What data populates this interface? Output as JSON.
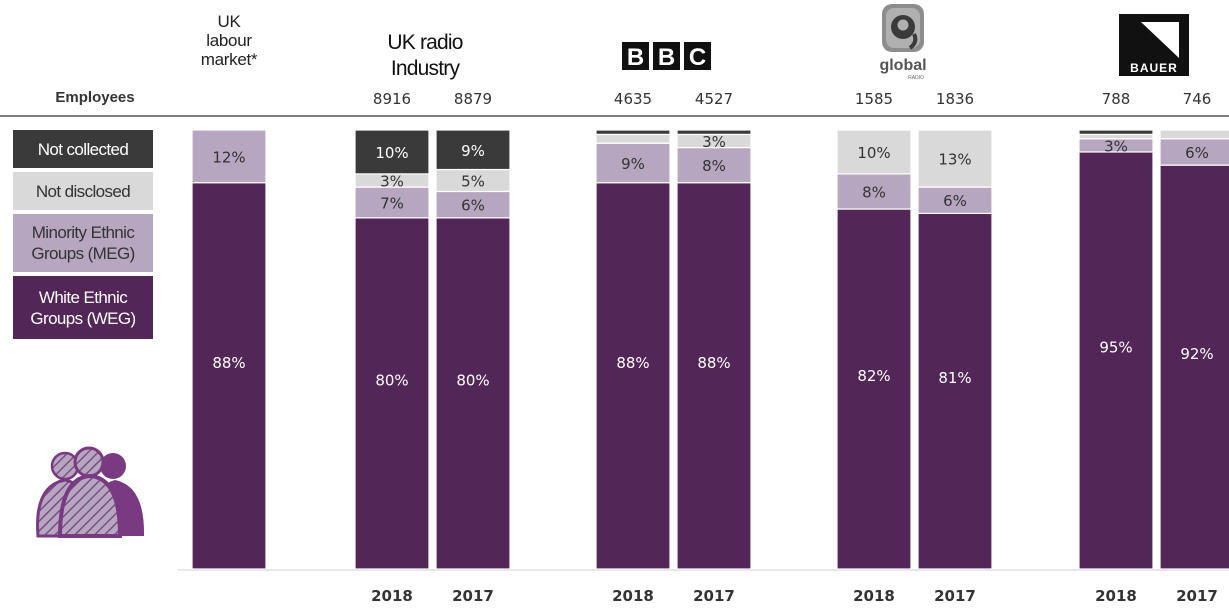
{
  "legend": {
    "not_collected": {
      "label": "Not collected",
      "color": "#3a3a3a"
    },
    "not_disclosed": {
      "label": "Not disclosed",
      "color": "#d9d9d9"
    },
    "meg": {
      "label": "Minority Ethnic Groups (MEG)",
      "color": "#b7a6c0"
    },
    "weg": {
      "label": "White Ethnic Groups (WEG)",
      "color": "#532658"
    }
  },
  "headers": {
    "employees_label": "Employees",
    "uk_labour_market": "UK labour market*",
    "uk_radio_industry": "UK radio Industry",
    "bbc_logo": "BBC",
    "global_logo": "global",
    "global_logo_sub": "RADIO",
    "bauer_logo": "BAUER"
  },
  "icons": {
    "people": "people-group-icon"
  },
  "chart_data": {
    "type": "bar",
    "stacked": true,
    "ylim": [
      0,
      100
    ],
    "series_order": [
      "White Ethnic Groups (WEG)",
      "Minority Ethnic Groups (MEG)",
      "Not disclosed",
      "Not collected"
    ],
    "bars": [
      {
        "group": "UK labour market*",
        "year": "",
        "employees": "",
        "weg": 88,
        "meg": 12,
        "not_disclosed": 0,
        "not_collected": 0,
        "labels": {
          "weg": "88%",
          "meg": "12%",
          "not_disclosed": "",
          "not_collected": ""
        }
      },
      {
        "group": "UK radio Industry",
        "year": "2018",
        "employees": "8916",
        "weg": 80,
        "meg": 7,
        "not_disclosed": 3,
        "not_collected": 10,
        "labels": {
          "weg": "80%",
          "meg": "7%",
          "not_disclosed": "3%",
          "not_collected": "10%"
        }
      },
      {
        "group": "UK radio Industry",
        "year": "2017",
        "employees": "8879",
        "weg": 80,
        "meg": 6,
        "not_disclosed": 5,
        "not_collected": 9,
        "labels": {
          "weg": "80%",
          "meg": "6%",
          "not_disclosed": "5%",
          "not_collected": "9%"
        }
      },
      {
        "group": "BBC",
        "year": "2018",
        "employees": "4635",
        "weg": 88,
        "meg": 9,
        "not_disclosed": 2,
        "not_collected": 1,
        "labels": {
          "weg": "88%",
          "meg": "9%",
          "not_disclosed": "",
          "not_collected": ""
        }
      },
      {
        "group": "BBC",
        "year": "2017",
        "employees": "4527",
        "weg": 88,
        "meg": 8,
        "not_disclosed": 3,
        "not_collected": 1,
        "labels": {
          "weg": "88%",
          "meg": "8%",
          "not_disclosed": "3%",
          "not_collected": ""
        }
      },
      {
        "group": "Global",
        "year": "2018",
        "employees": "1585",
        "weg": 82,
        "meg": 8,
        "not_disclosed": 10,
        "not_collected": 0,
        "labels": {
          "weg": "82%",
          "meg": "8%",
          "not_disclosed": "10%",
          "not_collected": ""
        }
      },
      {
        "group": "Global",
        "year": "2017",
        "employees": "1836",
        "weg": 81,
        "meg": 6,
        "not_disclosed": 13,
        "not_collected": 0,
        "labels": {
          "weg": "81%",
          "meg": "6%",
          "not_disclosed": "13%",
          "not_collected": ""
        }
      },
      {
        "group": "Bauer",
        "year": "2018",
        "employees": "788",
        "weg": 95,
        "meg": 3,
        "not_disclosed": 1,
        "not_collected": 1,
        "labels": {
          "weg": "95%",
          "meg": "3%",
          "not_disclosed": "",
          "not_collected": ""
        }
      },
      {
        "group": "Bauer",
        "year": "2017",
        "employees": "746",
        "weg": 92,
        "meg": 6,
        "not_disclosed": 2,
        "not_collected": 0,
        "labels": {
          "weg": "92%",
          "meg": "6%",
          "not_disclosed": "",
          "not_collected": ""
        }
      }
    ]
  }
}
